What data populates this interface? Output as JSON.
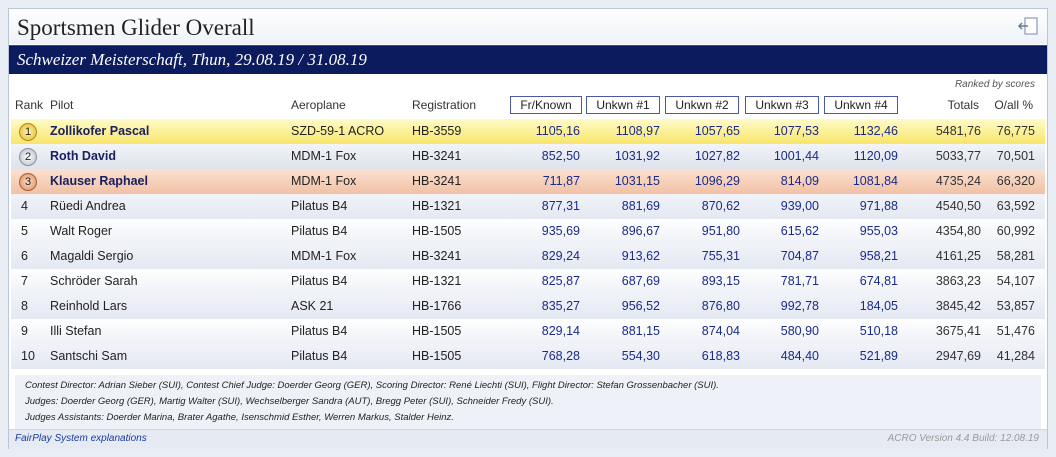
{
  "title": "Sportsmen Glider Overall",
  "banner": "Schweizer Meisterschaft, Thun, 29.08.19 / 31.08.19",
  "ranked_note": "Ranked by scores",
  "columns": {
    "rank": "Rank",
    "pilot": "Pilot",
    "aeroplane": "Aeroplane",
    "registration": "Registration",
    "fr_known": "Fr/Known",
    "unkwn1": "Unkwn #1",
    "unkwn2": "Unkwn #2",
    "unkwn3": "Unkwn #3",
    "unkwn4": "Unkwn #4",
    "totals": "Totals",
    "oall": "O/all %"
  },
  "rows": [
    {
      "rank": "1",
      "pilot": "Zollikofer Pascal",
      "aero": "SZD-59-1 ACRO",
      "reg": "HB-3559",
      "fr": "1105,16",
      "u1": "1108,97",
      "u2": "1057,65",
      "u3": "1077,53",
      "u4": "1132,46",
      "tot": "5481,76",
      "pct": "76,775"
    },
    {
      "rank": "2",
      "pilot": "Roth David",
      "aero": "MDM-1 Fox",
      "reg": "HB-3241",
      "fr": "852,50",
      "u1": "1031,92",
      "u2": "1027,82",
      "u3": "1001,44",
      "u4": "1120,09",
      "tot": "5033,77",
      "pct": "70,501"
    },
    {
      "rank": "3",
      "pilot": "Klauser Raphael",
      "aero": "MDM-1 Fox",
      "reg": "HB-3241",
      "fr": "711,87",
      "u1": "1031,15",
      "u2": "1096,29",
      "u3": "814,09",
      "u4": "1081,84",
      "tot": "4735,24",
      "pct": "66,320"
    },
    {
      "rank": "4",
      "pilot": "Rüedi Andrea",
      "aero": "Pilatus B4",
      "reg": "HB-1321",
      "fr": "877,31",
      "u1": "881,69",
      "u2": "870,62",
      "u3": "939,00",
      "u4": "971,88",
      "tot": "4540,50",
      "pct": "63,592"
    },
    {
      "rank": "5",
      "pilot": "Walt Roger",
      "aero": "Pilatus B4",
      "reg": "HB-1505",
      "fr": "935,69",
      "u1": "896,67",
      "u2": "951,80",
      "u3": "615,62",
      "u4": "955,03",
      "tot": "4354,80",
      "pct": "60,992"
    },
    {
      "rank": "6",
      "pilot": "Magaldi Sergio",
      "aero": "MDM-1 Fox",
      "reg": "HB-3241",
      "fr": "829,24",
      "u1": "913,62",
      "u2": "755,31",
      "u3": "704,87",
      "u4": "958,21",
      "tot": "4161,25",
      "pct": "58,281"
    },
    {
      "rank": "7",
      "pilot": "Schröder Sarah",
      "aero": "Pilatus B4",
      "reg": "HB-1321",
      "fr": "825,87",
      "u1": "687,69",
      "u2": "893,15",
      "u3": "781,71",
      "u4": "674,81",
      "tot": "3863,23",
      "pct": "54,107"
    },
    {
      "rank": "8",
      "pilot": "Reinhold Lars",
      "aero": "ASK 21",
      "reg": "HB-1766",
      "fr": "835,27",
      "u1": "956,52",
      "u2": "876,80",
      "u3": "992,78",
      "u4": "184,05",
      "tot": "3845,42",
      "pct": "53,857"
    },
    {
      "rank": "9",
      "pilot": "Illi Stefan",
      "aero": "Pilatus B4",
      "reg": "HB-1505",
      "fr": "829,14",
      "u1": "881,15",
      "u2": "874,04",
      "u3": "580,90",
      "u4": "510,18",
      "tot": "3675,41",
      "pct": "51,476"
    },
    {
      "rank": "10",
      "pilot": "Santschi Sam",
      "aero": "Pilatus B4",
      "reg": "HB-1505",
      "fr": "768,28",
      "u1": "554,30",
      "u2": "618,83",
      "u3": "484,40",
      "u4": "521,89",
      "tot": "2947,69",
      "pct": "41,284"
    }
  ],
  "footer": {
    "line1": "Contest Director: Adrian Sieber (SUI), Contest Chief Judge: Doerder Georg (GER), Scoring Director: René Liechti (SUI), Flight Director: Stefan Grossenbacher (SUI).",
    "line2": "Judges:  Doerder Georg (GER), Martig Walter (SUI), Wechselberger Sandra (AUT), Bregg Peter (SUI), Schneider Fredy (SUI).",
    "line3": "Judges  Assistants: Doerder Marina, Brater Agathe, Isenschmid Esther, Werren Markus, Stalder Heinz.",
    "fairplay": "FairPlay System explanations",
    "version": "ACRO Version 4.4 Build: 12.08.19"
  },
  "icons": {
    "exit": "exit-icon",
    "medal": "medal-icon"
  },
  "colors": {
    "banner": "#0c1a5e",
    "gold": "#f7e56a",
    "bronze": "#f1c1a5",
    "link": "#1a3aa0"
  }
}
